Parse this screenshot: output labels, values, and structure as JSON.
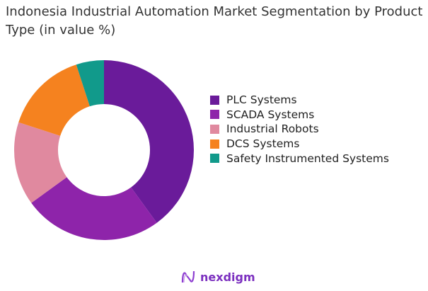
{
  "chart_data": {
    "type": "pie",
    "variant": "donut",
    "title": "Indonesia Industrial Automation Market Segmentation by Product Type (in value %)",
    "categories": [
      "PLC Systems",
      "SCADA Systems",
      "Industrial Robots",
      "DCS Systems",
      "Safety Instrumented Systems"
    ],
    "values": [
      40,
      25,
      15,
      15,
      5
    ],
    "colors": [
      "#6a1b9a",
      "#8e24aa",
      "#e0899f",
      "#f5821f",
      "#119a8b"
    ],
    "legend_position": "right"
  },
  "logo": {
    "text": "nexdigm"
  }
}
